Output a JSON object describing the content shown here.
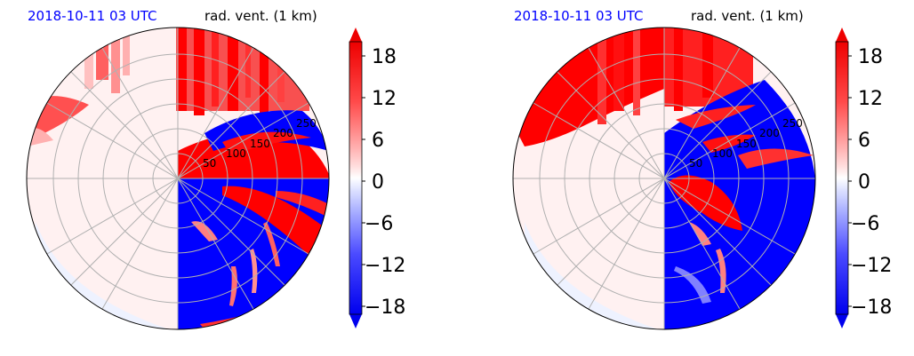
{
  "colors": {
    "positive": "#ff0000",
    "negative": "#0000ff",
    "neutral": "#fff0f0",
    "title": "#0000ff"
  },
  "chart_data": [
    {
      "type": "heatmap",
      "projection": "polar",
      "title_left": "2018-10-11 03 UTC",
      "title_right": "rad. vent. (1 km)",
      "range_rings": [
        50,
        100,
        150,
        200,
        250
      ],
      "range_ring_labels": [
        "50",
        "100",
        "150",
        "200",
        "250"
      ],
      "max_range": 280,
      "grid": true,
      "colorbar": {
        "ticks": [
          18,
          12,
          6,
          0,
          -6,
          -12,
          -18
        ],
        "tick_labels": [
          "18",
          "12",
          "6",
          "0",
          "−6",
          "−12",
          "−18"
        ],
        "vmin": -21,
        "vmax": 21,
        "extend": "both",
        "cmap": "bwr"
      }
    },
    {
      "type": "heatmap",
      "projection": "polar",
      "title_left": "2018-10-11 03 UTC",
      "title_right": "rad. vent. (1 km)",
      "range_rings": [
        50,
        100,
        150,
        200,
        250
      ],
      "range_ring_labels": [
        "50",
        "100",
        "150",
        "200",
        "250"
      ],
      "max_range": 280,
      "grid": true,
      "colorbar": {
        "ticks": [
          18,
          12,
          6,
          0,
          -6,
          -12,
          -18
        ],
        "tick_labels": [
          "18",
          "12",
          "6",
          "0",
          "−6",
          "−12",
          "−18"
        ],
        "vmin": -21,
        "vmax": 21,
        "extend": "both",
        "cmap": "bwr"
      }
    }
  ]
}
